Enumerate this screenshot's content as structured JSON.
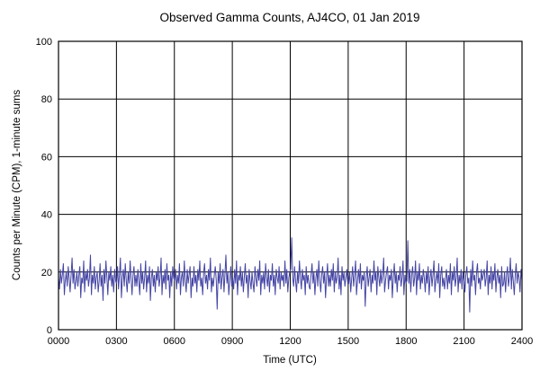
{
  "page": {
    "background": "#ffffff"
  },
  "chart_data": {
    "type": "line",
    "title": "Observed Gamma Counts, AJ4CO, 01 Jan 2019",
    "xlabel": "Time (UTC)",
    "ylabel": "Counts per Minute (CPM), 1-minute sums",
    "x_tick_labels": [
      "0000",
      "0300",
      "0600",
      "0900",
      "1200",
      "1500",
      "1800",
      "2100",
      "2400"
    ],
    "y_ticks": [
      0,
      20,
      40,
      60,
      80,
      100
    ],
    "ylim": [
      0,
      100
    ],
    "x_range_minutes": [
      0,
      1440
    ],
    "sample_interval_minutes": 3,
    "grid": true,
    "legend": "none",
    "line_color": "#4545A5",
    "grid_color": "#000000",
    "values": [
      18,
      14,
      21,
      16,
      19,
      23,
      12,
      17,
      20,
      15,
      22,
      18,
      13,
      19,
      25,
      16,
      21,
      14,
      17,
      20,
      15,
      19,
      22,
      11,
      18,
      16,
      24,
      13,
      20,
      17,
      21,
      15,
      18,
      26,
      12,
      19,
      16,
      22,
      14,
      18,
      20,
      13,
      17,
      23,
      15,
      19,
      10,
      21,
      16,
      24,
      18,
      12,
      20,
      17,
      22,
      15,
      19,
      13,
      21,
      17,
      16,
      22,
      14,
      19,
      25,
      11,
      18,
      21,
      15,
      23,
      17,
      13,
      20,
      16,
      24,
      18,
      12,
      19,
      22,
      15,
      19,
      15,
      21,
      17,
      12,
      23,
      16,
      20,
      14,
      18,
      24,
      13,
      19,
      16,
      22,
      10,
      18,
      21,
      15,
      19,
      13,
      20,
      17,
      22,
      15,
      18,
      25,
      12,
      19,
      16,
      21,
      14,
      23,
      17,
      19,
      11,
      20,
      15,
      22,
      18,
      17,
      21,
      14,
      19,
      16,
      23,
      12,
      18,
      20,
      15,
      24,
      17,
      13,
      21,
      16,
      19,
      22,
      11,
      18,
      15,
      22,
      16,
      19,
      13,
      21,
      17,
      24,
      15,
      18,
      12,
      20,
      23,
      16,
      19,
      14,
      21,
      17,
      25,
      13,
      18,
      15,
      19,
      22,
      17,
      7,
      20,
      16,
      23,
      14,
      18,
      21,
      13,
      19,
      26,
      16,
      20,
      12,
      17,
      22,
      15,
      18,
      14,
      21,
      16,
      24,
      12,
      19,
      17,
      22,
      15,
      20,
      13,
      18,
      23,
      16,
      19,
      11,
      21,
      17,
      14,
      20,
      16,
      13,
      22,
      18,
      15,
      21,
      17,
      24,
      12,
      19,
      16,
      20,
      14,
      23,
      18,
      15,
      21,
      13,
      19,
      17,
      23,
      15,
      19,
      12,
      21,
      18,
      16,
      22,
      14,
      20,
      17,
      19,
      15,
      24,
      16,
      21,
      13,
      18,
      20,
      21,
      32,
      18,
      15,
      22,
      17,
      13,
      20,
      16,
      24,
      18,
      14,
      21,
      17,
      19,
      12,
      22,
      16,
      19,
      15,
      14,
      19,
      23,
      16,
      20,
      12,
      18,
      21,
      15,
      24,
      17,
      13,
      19,
      22,
      16,
      20,
      11,
      18,
      23,
      15,
      19,
      15,
      21,
      17,
      23,
      13,
      20,
      16,
      18,
      25,
      14,
      19,
      12,
      22,
      17,
      20,
      15,
      18,
      21,
      16,
      16,
      20,
      13,
      18,
      22,
      15,
      19,
      24,
      12,
      17,
      21,
      16,
      23,
      14,
      19,
      17,
      20,
      8,
      18,
      22,
      15,
      18,
      21,
      13,
      19,
      16,
      24,
      17,
      20,
      12,
      22,
      18,
      15,
      21,
      16,
      19,
      25,
      13,
      17,
      20,
      22,
      14,
      19,
      17,
      21,
      11,
      18,
      23,
      16,
      20,
      13,
      19,
      17,
      22,
      15,
      18,
      24,
      12,
      19,
      16,
      17,
      31,
      16,
      21,
      13,
      19,
      22,
      15,
      18,
      24,
      12,
      20,
      17,
      23,
      14,
      19,
      16,
      21,
      18,
      13,
      20,
      16,
      22,
      12,
      18,
      21,
      15,
      19,
      24,
      13,
      17,
      20,
      16,
      23,
      11,
      19,
      22,
      15,
      18,
      14,
      18,
      21,
      14,
      19,
      16,
      23,
      12,
      20,
      17,
      22,
      15,
      18,
      25,
      13,
      19,
      16,
      21,
      14,
      20,
      17,
      13,
      19,
      22,
      16,
      18,
      6,
      21,
      15,
      24,
      17,
      19,
      12,
      20,
      23,
      16,
      18,
      14,
      21,
      17,
      19,
      21,
      15,
      18,
      24,
      12,
      19,
      16,
      22,
      14,
      20,
      17,
      23,
      13,
      18,
      21,
      16,
      19,
      11,
      22,
      15,
      16,
      20,
      13,
      19,
      22,
      15,
      18,
      25,
      14,
      21,
      17,
      12,
      19,
      23,
      16,
      20,
      18,
      13,
      21,
      17
    ]
  }
}
